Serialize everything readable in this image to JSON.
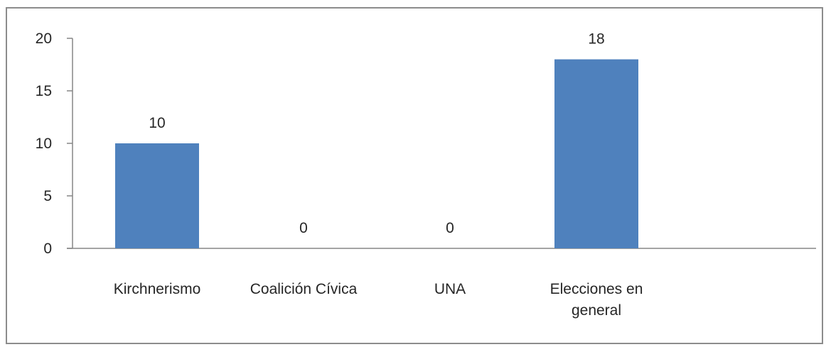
{
  "chart_data": {
    "type": "bar",
    "categories": [
      [
        "Kirchnerismo"
      ],
      [
        "Coalición Cívica"
      ],
      [
        "UNA"
      ],
      [
        "Elecciones en",
        "general"
      ]
    ],
    "values": [
      10,
      0,
      0,
      18
    ],
    "data_labels": [
      "10",
      "0",
      "0",
      "18"
    ],
    "yticks": [
      "0",
      "5",
      "10",
      "15",
      "20"
    ],
    "ylim": [
      0,
      20
    ],
    "title": "",
    "xlabel": "",
    "ylabel": "",
    "grid": false,
    "legend": "none",
    "colors": {
      "bar": "#4f81bd",
      "axis": "#868686",
      "frame": "#8c8c8c",
      "text": "#262626"
    }
  }
}
